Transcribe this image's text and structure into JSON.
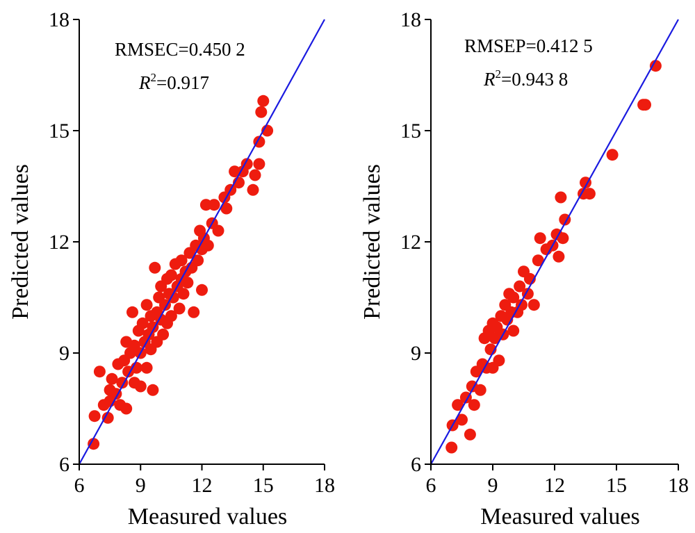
{
  "colors": {
    "points": "#ee1c0f",
    "line": "#1a1ae0",
    "axis": "#000000"
  },
  "chart_data": [
    {
      "type": "scatter",
      "xlabel": "Measured values",
      "ylabel": "Predicted values",
      "xlim": [
        6,
        18
      ],
      "ylim": [
        6,
        18
      ],
      "xticks": [
        "6",
        "9",
        "12",
        "15",
        "18"
      ],
      "yticks": [
        "6",
        "9",
        "12",
        "15",
        "18"
      ],
      "stat1": "RMSEC=0.450 2",
      "stat2_prefix": "R",
      "stat2_sup": "2",
      "stat2_value": "=0.917",
      "reference_line": [
        [
          6,
          6
        ],
        [
          18,
          18
        ]
      ],
      "points": [
        [
          6.7,
          6.55
        ],
        [
          6.75,
          7.3
        ],
        [
          7.0,
          8.5
        ],
        [
          7.2,
          7.6
        ],
        [
          7.4,
          7.25
        ],
        [
          7.5,
          7.7
        ],
        [
          7.5,
          8.0
        ],
        [
          7.6,
          8.3
        ],
        [
          7.8,
          7.9
        ],
        [
          7.9,
          8.7
        ],
        [
          8.0,
          7.6
        ],
        [
          8.1,
          8.2
        ],
        [
          8.2,
          8.8
        ],
        [
          8.3,
          7.5
        ],
        [
          8.3,
          9.3
        ],
        [
          8.4,
          8.5
        ],
        [
          8.5,
          9.0
        ],
        [
          8.6,
          10.1
        ],
        [
          8.7,
          9.2
        ],
        [
          8.7,
          8.2
        ],
        [
          8.8,
          8.6
        ],
        [
          8.9,
          9.6
        ],
        [
          9.0,
          9.0
        ],
        [
          9.0,
          8.1
        ],
        [
          9.1,
          9.8
        ],
        [
          9.2,
          9.3
        ],
        [
          9.3,
          8.6
        ],
        [
          9.3,
          10.3
        ],
        [
          9.4,
          9.5
        ],
        [
          9.5,
          9.1
        ],
        [
          9.5,
          10.0
        ],
        [
          9.6,
          9.7
        ],
        [
          9.6,
          8.0
        ],
        [
          9.7,
          11.3
        ],
        [
          9.8,
          10.1
        ],
        [
          9.8,
          9.3
        ],
        [
          9.9,
          10.5
        ],
        [
          10.0,
          9.9
        ],
        [
          10.0,
          10.8
        ],
        [
          10.1,
          9.5
        ],
        [
          10.2,
          10.3
        ],
        [
          10.3,
          11.0
        ],
        [
          10.3,
          9.8
        ],
        [
          10.4,
          10.6
        ],
        [
          10.5,
          11.1
        ],
        [
          10.5,
          10.0
        ],
        [
          10.6,
          10.5
        ],
        [
          10.7,
          11.4
        ],
        [
          10.8,
          10.8
        ],
        [
          10.9,
          10.2
        ],
        [
          11.0,
          11.0
        ],
        [
          11.0,
          11.5
        ],
        [
          11.1,
          10.6
        ],
        [
          11.2,
          11.2
        ],
        [
          11.3,
          10.9
        ],
        [
          11.4,
          11.7
        ],
        [
          11.5,
          11.3
        ],
        [
          11.6,
          10.1
        ],
        [
          11.7,
          11.9
        ],
        [
          11.8,
          11.5
        ],
        [
          11.9,
          12.3
        ],
        [
          12.0,
          11.8
        ],
        [
          12.0,
          10.7
        ],
        [
          12.1,
          12.1
        ],
        [
          12.2,
          13.0
        ],
        [
          12.3,
          11.9
        ],
        [
          12.5,
          12.5
        ],
        [
          12.6,
          13.0
        ],
        [
          12.8,
          12.3
        ],
        [
          13.1,
          13.2
        ],
        [
          13.2,
          12.9
        ],
        [
          13.4,
          13.4
        ],
        [
          13.6,
          13.9
        ],
        [
          13.8,
          13.6
        ],
        [
          14.0,
          13.9
        ],
        [
          14.2,
          14.1
        ],
        [
          14.5,
          13.4
        ],
        [
          14.6,
          13.8
        ],
        [
          14.8,
          14.1
        ],
        [
          14.8,
          14.7
        ],
        [
          14.9,
          15.5
        ],
        [
          15.0,
          15.8
        ],
        [
          15.2,
          15.0
        ]
      ]
    },
    {
      "type": "scatter",
      "xlabel": "Measured values",
      "ylabel": "Predicted values",
      "xlim": [
        6,
        18
      ],
      "ylim": [
        6,
        18
      ],
      "xticks": [
        "6",
        "9",
        "12",
        "15",
        "18"
      ],
      "yticks": [
        "6",
        "9",
        "12",
        "15",
        "18"
      ],
      "stat1": "RMSEP=0.412 5",
      "stat2_prefix": "R",
      "stat2_sup": "2",
      "stat2_value": "=0.943 8",
      "reference_line": [
        [
          6,
          6
        ],
        [
          18,
          18
        ]
      ],
      "points": [
        [
          7.0,
          6.45
        ],
        [
          7.05,
          7.05
        ],
        [
          7.3,
          7.6
        ],
        [
          7.5,
          7.2
        ],
        [
          7.7,
          7.8
        ],
        [
          7.9,
          6.8
        ],
        [
          8.0,
          8.1
        ],
        [
          8.1,
          7.6
        ],
        [
          8.2,
          8.5
        ],
        [
          8.4,
          8.0
        ],
        [
          8.5,
          8.7
        ],
        [
          8.6,
          9.4
        ],
        [
          8.7,
          8.6
        ],
        [
          8.8,
          9.6
        ],
        [
          8.9,
          9.1
        ],
        [
          9.0,
          8.6
        ],
        [
          9.0,
          9.8
        ],
        [
          9.1,
          9.4
        ],
        [
          9.2,
          9.7
        ],
        [
          9.3,
          8.8
        ],
        [
          9.4,
          10.0
        ],
        [
          9.5,
          9.5
        ],
        [
          9.6,
          10.3
        ],
        [
          9.7,
          9.9
        ],
        [
          9.8,
          10.6
        ],
        [
          9.9,
          10.1
        ],
        [
          10.0,
          9.6
        ],
        [
          10.0,
          10.5
        ],
        [
          10.2,
          10.1
        ],
        [
          10.3,
          10.8
        ],
        [
          10.4,
          10.3
        ],
        [
          10.5,
          11.2
        ],
        [
          10.7,
          10.6
        ],
        [
          10.8,
          11.0
        ],
        [
          11.0,
          10.3
        ],
        [
          11.2,
          11.5
        ],
        [
          11.3,
          12.1
        ],
        [
          11.6,
          11.8
        ],
        [
          11.9,
          11.9
        ],
        [
          12.1,
          12.2
        ],
        [
          12.2,
          11.6
        ],
        [
          12.4,
          12.1
        ],
        [
          12.5,
          12.6
        ],
        [
          12.3,
          13.2
        ],
        [
          13.4,
          13.3
        ],
        [
          13.5,
          13.6
        ],
        [
          13.7,
          13.3
        ],
        [
          14.8,
          14.35
        ],
        [
          16.3,
          15.7
        ],
        [
          16.4,
          15.7
        ],
        [
          16.9,
          16.75
        ]
      ]
    }
  ]
}
